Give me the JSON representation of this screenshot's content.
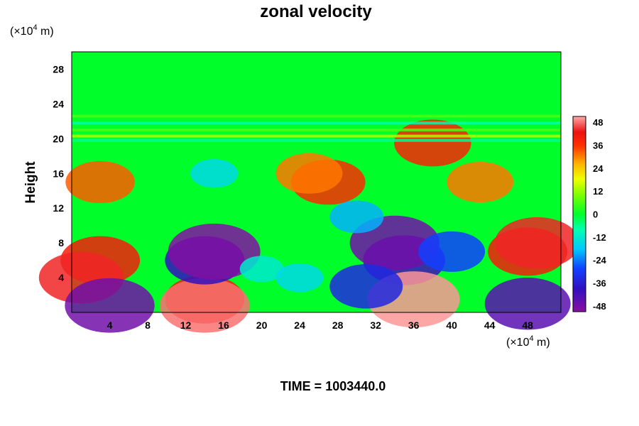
{
  "chart_data": {
    "type": "heatmap",
    "title": "zonal velocity",
    "ylabel": "Height",
    "x_unit": {
      "prefix": "(×10",
      "exp": "4",
      "suffix": " m)"
    },
    "y_unit": {
      "prefix": "(×10",
      "exp": "4",
      "suffix": " m)"
    },
    "x_ticks": [
      4,
      8,
      12,
      16,
      20,
      24,
      28,
      32,
      36,
      40,
      44,
      48
    ],
    "y_ticks": [
      4,
      8,
      12,
      16,
      20,
      24,
      28
    ],
    "xlim": [
      0,
      51.5
    ],
    "ylim": [
      0,
      30
    ],
    "colorbar": {
      "ticks": [
        48,
        36,
        24,
        12,
        0,
        -12,
        -24,
        -36,
        -48
      ],
      "range": [
        -51,
        51
      ]
    },
    "colors": {
      "min": "#8a0fa0",
      "low": "#1a1ac8",
      "zero": "#00ff2a",
      "high": "#ee1111",
      "max": "#ffaaaa"
    },
    "features": [
      {
        "x": 3,
        "y": 6,
        "value": 40
      },
      {
        "x": 1,
        "y": 4,
        "value": 44
      },
      {
        "x": 14,
        "y": 1.5,
        "value": 40
      },
      {
        "x": 14,
        "y": 0.8,
        "value": 48
      },
      {
        "x": 14,
        "y": 6,
        "value": -40
      },
      {
        "x": 15,
        "y": 7,
        "value": -50
      },
      {
        "x": 35,
        "y": 6,
        "value": -42
      },
      {
        "x": 34,
        "y": 8,
        "value": -48
      },
      {
        "x": 40,
        "y": 7,
        "value": -30
      },
      {
        "x": 36,
        "y": 1.5,
        "value": 50
      },
      {
        "x": 48,
        "y": 7,
        "value": 40
      },
      {
        "x": 49,
        "y": 8,
        "value": 44
      },
      {
        "x": 48,
        "y": 1,
        "value": -45
      },
      {
        "x": 4,
        "y": 0.8,
        "value": -48
      },
      {
        "x": 27,
        "y": 15,
        "value": 36
      },
      {
        "x": 25,
        "y": 16,
        "value": 30
      },
      {
        "x": 43,
        "y": 15,
        "value": 30
      },
      {
        "x": 3,
        "y": 15,
        "value": 32
      },
      {
        "x": 38,
        "y": 19.5,
        "value": 38
      },
      {
        "x": 20,
        "y": 5,
        "value": -12
      },
      {
        "x": 24,
        "y": 4,
        "value": -15
      },
      {
        "x": 31,
        "y": 3,
        "value": -35
      },
      {
        "x": 30,
        "y": 11,
        "value": -20
      },
      {
        "x": 15,
        "y": 16,
        "value": -15
      }
    ],
    "time_label": "TIME = 1003440.0"
  }
}
